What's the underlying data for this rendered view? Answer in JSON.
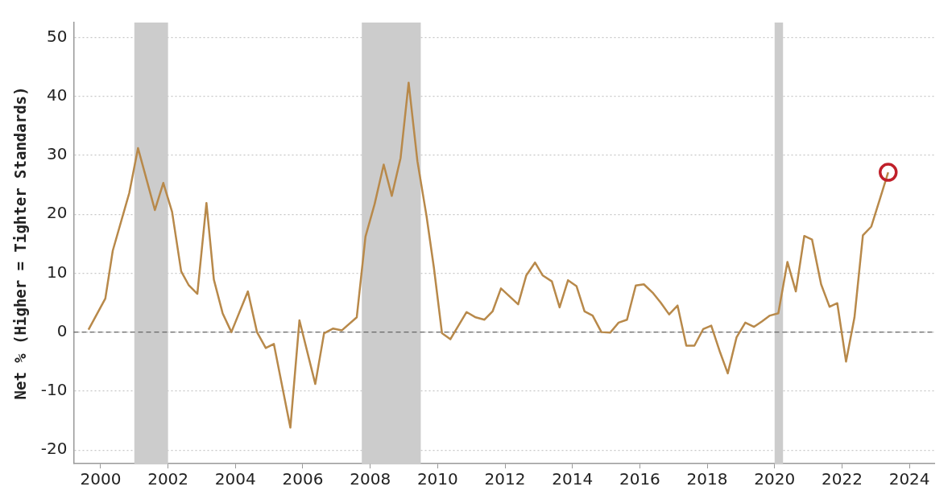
{
  "chart_data": {
    "type": "line",
    "ylabel": "Net % (Higher = Tighter Standards)",
    "xlim": [
      1999.2,
      2024.75
    ],
    "xticks": [
      2000,
      2002,
      2004,
      2006,
      2008,
      2010,
      2012,
      2014,
      2016,
      2018,
      2020,
      2022,
      2024
    ],
    "ylim": [
      -22.3,
      52.5
    ],
    "yticks": [
      -20,
      -10,
      0,
      10,
      20,
      30,
      40,
      50
    ],
    "grid": "y",
    "legend": false,
    "line_style": "solid",
    "bands": [
      {
        "axis": "x",
        "from": 2001.0,
        "to": 2002.0,
        "color": "#cccccc"
      },
      {
        "axis": "x",
        "from": 2007.75,
        "to": 2009.5,
        "color": "#cccccc"
      },
      {
        "axis": "x",
        "from": 2020.0,
        "to": 2020.25,
        "color": "#cccccc"
      }
    ],
    "ref_lines": [
      {
        "axis": "y",
        "value": 0,
        "color": "#666666",
        "line_style": "dashed"
      }
    ],
    "series": [
      {
        "type": "line",
        "color": "#b8894a",
        "marker": "none",
        "x": [
          1999.64,
          2000.14,
          2000.36,
          2000.85,
          2001.11,
          2001.61,
          2001.86,
          2002.12,
          2002.39,
          2002.61,
          2002.87,
          2003.14,
          2003.36,
          2003.62,
          2003.88,
          2004.37,
          2004.64,
          2004.9,
          2005.14,
          2005.63,
          2005.9,
          2006.37,
          2006.63,
          2006.9,
          2007.16,
          2007.6,
          2007.86,
          2008.13,
          2008.4,
          2008.64,
          2008.9,
          2009.14,
          2009.4,
          2009.67,
          2009.89,
          2010.13,
          2010.38,
          2010.86,
          2011.13,
          2011.39,
          2011.63,
          2011.88,
          2012.39,
          2012.63,
          2012.89,
          2013.12,
          2013.39,
          2013.62,
          2013.87,
          2014.12,
          2014.36,
          2014.6,
          2014.86,
          2015.12,
          2015.37,
          2015.62,
          2015.88,
          2016.12,
          2016.38,
          2016.62,
          2016.87,
          2017.12,
          2017.38,
          2017.62,
          2017.88,
          2018.12,
          2018.38,
          2018.61,
          2018.87,
          2019.13,
          2019.39,
          2019.62,
          2019.86,
          2020.11,
          2020.38,
          2020.63,
          2020.88,
          2021.11,
          2021.38,
          2021.63,
          2021.86,
          2022.12,
          2022.37,
          2022.62,
          2022.87,
          2023.12,
          2023.37
        ],
        "values": [
          0.4,
          5.7,
          13.8,
          23.6,
          31.2,
          20.7,
          25.3,
          20.4,
          10.3,
          8.0,
          6.5,
          21.9,
          8.9,
          3.2,
          0,
          6.9,
          0,
          -2.7,
          -2.0,
          -16.2,
          2.0,
          -8.8,
          -0.2,
          0.6,
          0.3,
          2.5,
          16.2,
          21.7,
          28.4,
          23.1,
          29.5,
          42.3,
          29.0,
          19.7,
          10.9,
          -0.2,
          -1.2,
          3.4,
          2.5,
          2.1,
          3.5,
          7.4,
          4.7,
          9.6,
          11.8,
          9.6,
          8.6,
          4.2,
          8.8,
          7.8,
          3.5,
          2.8,
          0,
          -0.1,
          1.6,
          2.1,
          7.9,
          8.1,
          6.7,
          5.0,
          3.0,
          4.5,
          -2.3,
          -2.3,
          0.5,
          1.1,
          -3.4,
          -7.0,
          -0.9,
          1.6,
          0.9,
          1.8,
          2.8,
          3.2,
          11.9,
          6.9,
          16.3,
          15.7,
          8.1,
          4.3,
          4.9,
          -5.0,
          2.5,
          16.4,
          17.9,
          22.5,
          27.1
        ]
      },
      {
        "type": "scatter",
        "color": "#c0202a",
        "marker": "circle",
        "x": [
          2023.37
        ],
        "values": [
          27.1
        ]
      }
    ]
  }
}
